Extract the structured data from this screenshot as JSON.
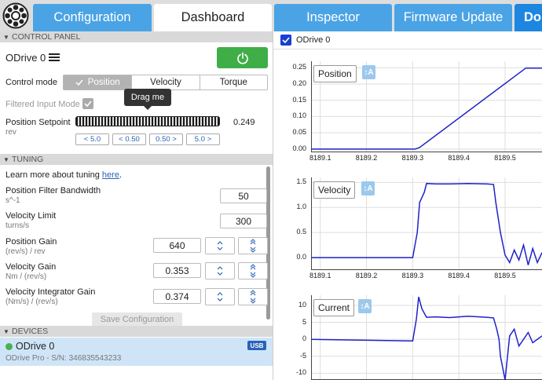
{
  "tabs": [
    {
      "label": "Configuration"
    },
    {
      "label": "Dashboard"
    },
    {
      "label": "Inspector"
    },
    {
      "label": "Firmware Update"
    },
    {
      "label": "Do"
    }
  ],
  "control_panel": {
    "header": "CONTROL PANEL",
    "device_title": "ODrive 0",
    "control_mode_label": "Control mode",
    "modes": [
      "Position",
      "Velocity",
      "Torque"
    ],
    "active_mode": "Position",
    "filtered_input_label": "Filtered Input Mode",
    "filtered_input_checked": true,
    "tooltip": "Drag me",
    "setpoint_label": "Position Setpoint",
    "setpoint_unit": "rev",
    "setpoint_value": "0.249",
    "step_buttons": [
      "5.0",
      "0.50",
      "0.50",
      "5.0"
    ]
  },
  "tuning": {
    "header": "TUNING",
    "learn_text": "Learn more about tuning ",
    "learn_link": "here",
    "learn_suffix": ".",
    "position_filter_label": "Position Filter Bandwidth",
    "position_filter_unit": "s^-1",
    "position_filter_value": "50",
    "velocity_limit_label": "Velocity Limit",
    "velocity_limit_unit": "turns/s",
    "velocity_limit_value": "300",
    "position_gain_label": "Position Gain",
    "position_gain_unit": "(rev/s) / rev",
    "position_gain_value": "640",
    "velocity_gain_label": "Velocity Gain",
    "velocity_gain_unit": "Nm / (rev/s)",
    "velocity_gain_value": "0.353",
    "vel_int_gain_label": "Velocity Integrator Gain",
    "vel_int_gain_unit": "(Nm/s) / (rev/s)",
    "vel_int_gain_value": "0.374",
    "save_label": "Save Configuration"
  },
  "devices": {
    "header": "DEVICES",
    "device_name": "ODrive 0",
    "device_detail": "ODrive Pro  - S/N: 346835543233",
    "badge": "USB",
    "status_color": "#4caf50"
  },
  "plots_header": {
    "checkbox_checked": true,
    "label": "ODrive 0"
  },
  "colors": {
    "accent": "#4aa3e4",
    "power_button": "#3fae47",
    "trace": "#1e22c8",
    "device_selected": "#cfe5f7"
  },
  "chart_data": [
    {
      "type": "line",
      "title": "Position",
      "x_ticks": [
        "8189.1",
        "8189.2",
        "8189.3",
        "8189.4",
        "8189.5"
      ],
      "y_ticks": [
        "0.25",
        "0.20",
        "0.15",
        "0.10",
        "0.05",
        "0.00"
      ],
      "xlim": [
        8189.08,
        8189.58
      ],
      "ylim": [
        -0.01,
        0.27
      ],
      "series": [
        {
          "x": [
            8189.08,
            8189.305,
            8189.315,
            8189.545,
            8189.555,
            8189.58
          ],
          "y": [
            0.0,
            0.0,
            0.005,
            0.249,
            0.249,
            0.249
          ]
        }
      ]
    },
    {
      "type": "line",
      "title": "Velocity",
      "x_ticks": [
        "8189.1",
        "8189.2",
        "8189.3",
        "8189.4",
        "8189.5"
      ],
      "y_ticks": [
        "1.5",
        "1.0",
        "0.5",
        "0.0"
      ],
      "xlim": [
        8189.08,
        8189.58
      ],
      "ylim": [
        -0.25,
        1.6
      ],
      "series": [
        {
          "x": [
            8189.08,
            8189.3,
            8189.31,
            8189.315,
            8189.325,
            8189.33,
            8189.35,
            8189.38,
            8189.42,
            8189.46,
            8189.475,
            8189.48,
            8189.49,
            8189.5,
            8189.51,
            8189.52,
            8189.53,
            8189.54,
            8189.55,
            8189.56,
            8189.57,
            8189.58
          ],
          "y": [
            0.0,
            0.0,
            0.5,
            1.1,
            1.3,
            1.48,
            1.47,
            1.47,
            1.48,
            1.47,
            1.46,
            1.1,
            0.5,
            0.05,
            -0.1,
            0.15,
            -0.05,
            0.25,
            -0.15,
            0.18,
            -0.1,
            0.1
          ]
        }
      ]
    },
    {
      "type": "line",
      "title": "Current",
      "x_ticks": [],
      "y_ticks": [
        "10",
        "5",
        "0",
        "-5",
        "-10"
      ],
      "xlim": [
        8189.08,
        8189.58
      ],
      "ylim": [
        -12,
        13
      ],
      "series": [
        {
          "x": [
            8189.08,
            8189.3,
            8189.308,
            8189.313,
            8189.32,
            8189.33,
            8189.35,
            8189.38,
            8189.42,
            8189.46,
            8189.475,
            8189.482,
            8189.487,
            8189.49,
            8189.5,
            8189.51,
            8189.52,
            8189.53,
            8189.54,
            8189.55,
            8189.56,
            8189.58
          ],
          "y": [
            0.0,
            -0.5,
            6,
            12.5,
            9,
            6.5,
            6.6,
            6.4,
            6.8,
            6.5,
            6.3,
            3,
            0,
            -5,
            -12,
            1,
            3,
            -2,
            0,
            2,
            -1,
            1
          ]
        }
      ]
    }
  ]
}
